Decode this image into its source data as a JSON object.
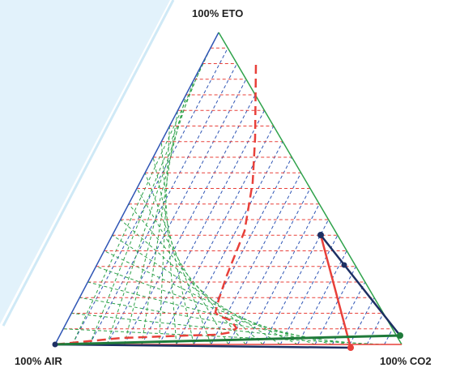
{
  "labels": {
    "top": "100% ETO",
    "left": "100% AIR",
    "right": "100% CO2"
  },
  "colors": {
    "background": "#e2f2fb",
    "panel": "#ffffff",
    "grid_horizontal": "#e8403a",
    "grid_left_family": "#2f55b5",
    "grid_right_family": "#2ea24a",
    "curve_dashed": "#e8403a",
    "line_red": "#e8403a",
    "line_navy": "#1d2f63",
    "line_green": "#1f7a3a"
  },
  "diagram": {
    "type": "ternary",
    "grid_divisions": 20
  }
}
